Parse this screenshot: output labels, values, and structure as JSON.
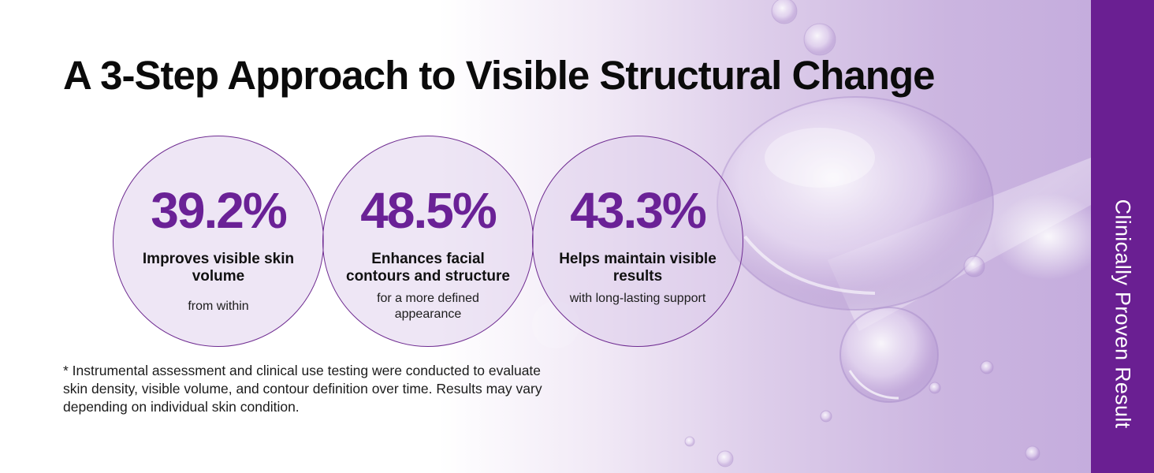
{
  "headline": "A 3-Step Approach to Visible Structural Change",
  "stats": [
    {
      "value": "39.2%",
      "title": "Improves visible skin volume",
      "subtitle": "from within"
    },
    {
      "value": "48.5%",
      "title": "Enhances facial contours and structure",
      "subtitle": "for a more defined appearance"
    },
    {
      "value": "43.3%",
      "title": "Helps maintain visible results",
      "subtitle": "with long-lasting support"
    }
  ],
  "footnote": "* Instrumental assessment and clinical use testing were conducted to evaluate skin density, visible volume, and contour definition over time. Results may vary depending on individual skin condition.",
  "side_label": "Clinically Proven Result",
  "colors": {
    "accent": "#6a1f92",
    "stat_purple": "#6a2196",
    "circle_outline": "#6f2c91",
    "background_lavender": "#cbb5e0"
  }
}
